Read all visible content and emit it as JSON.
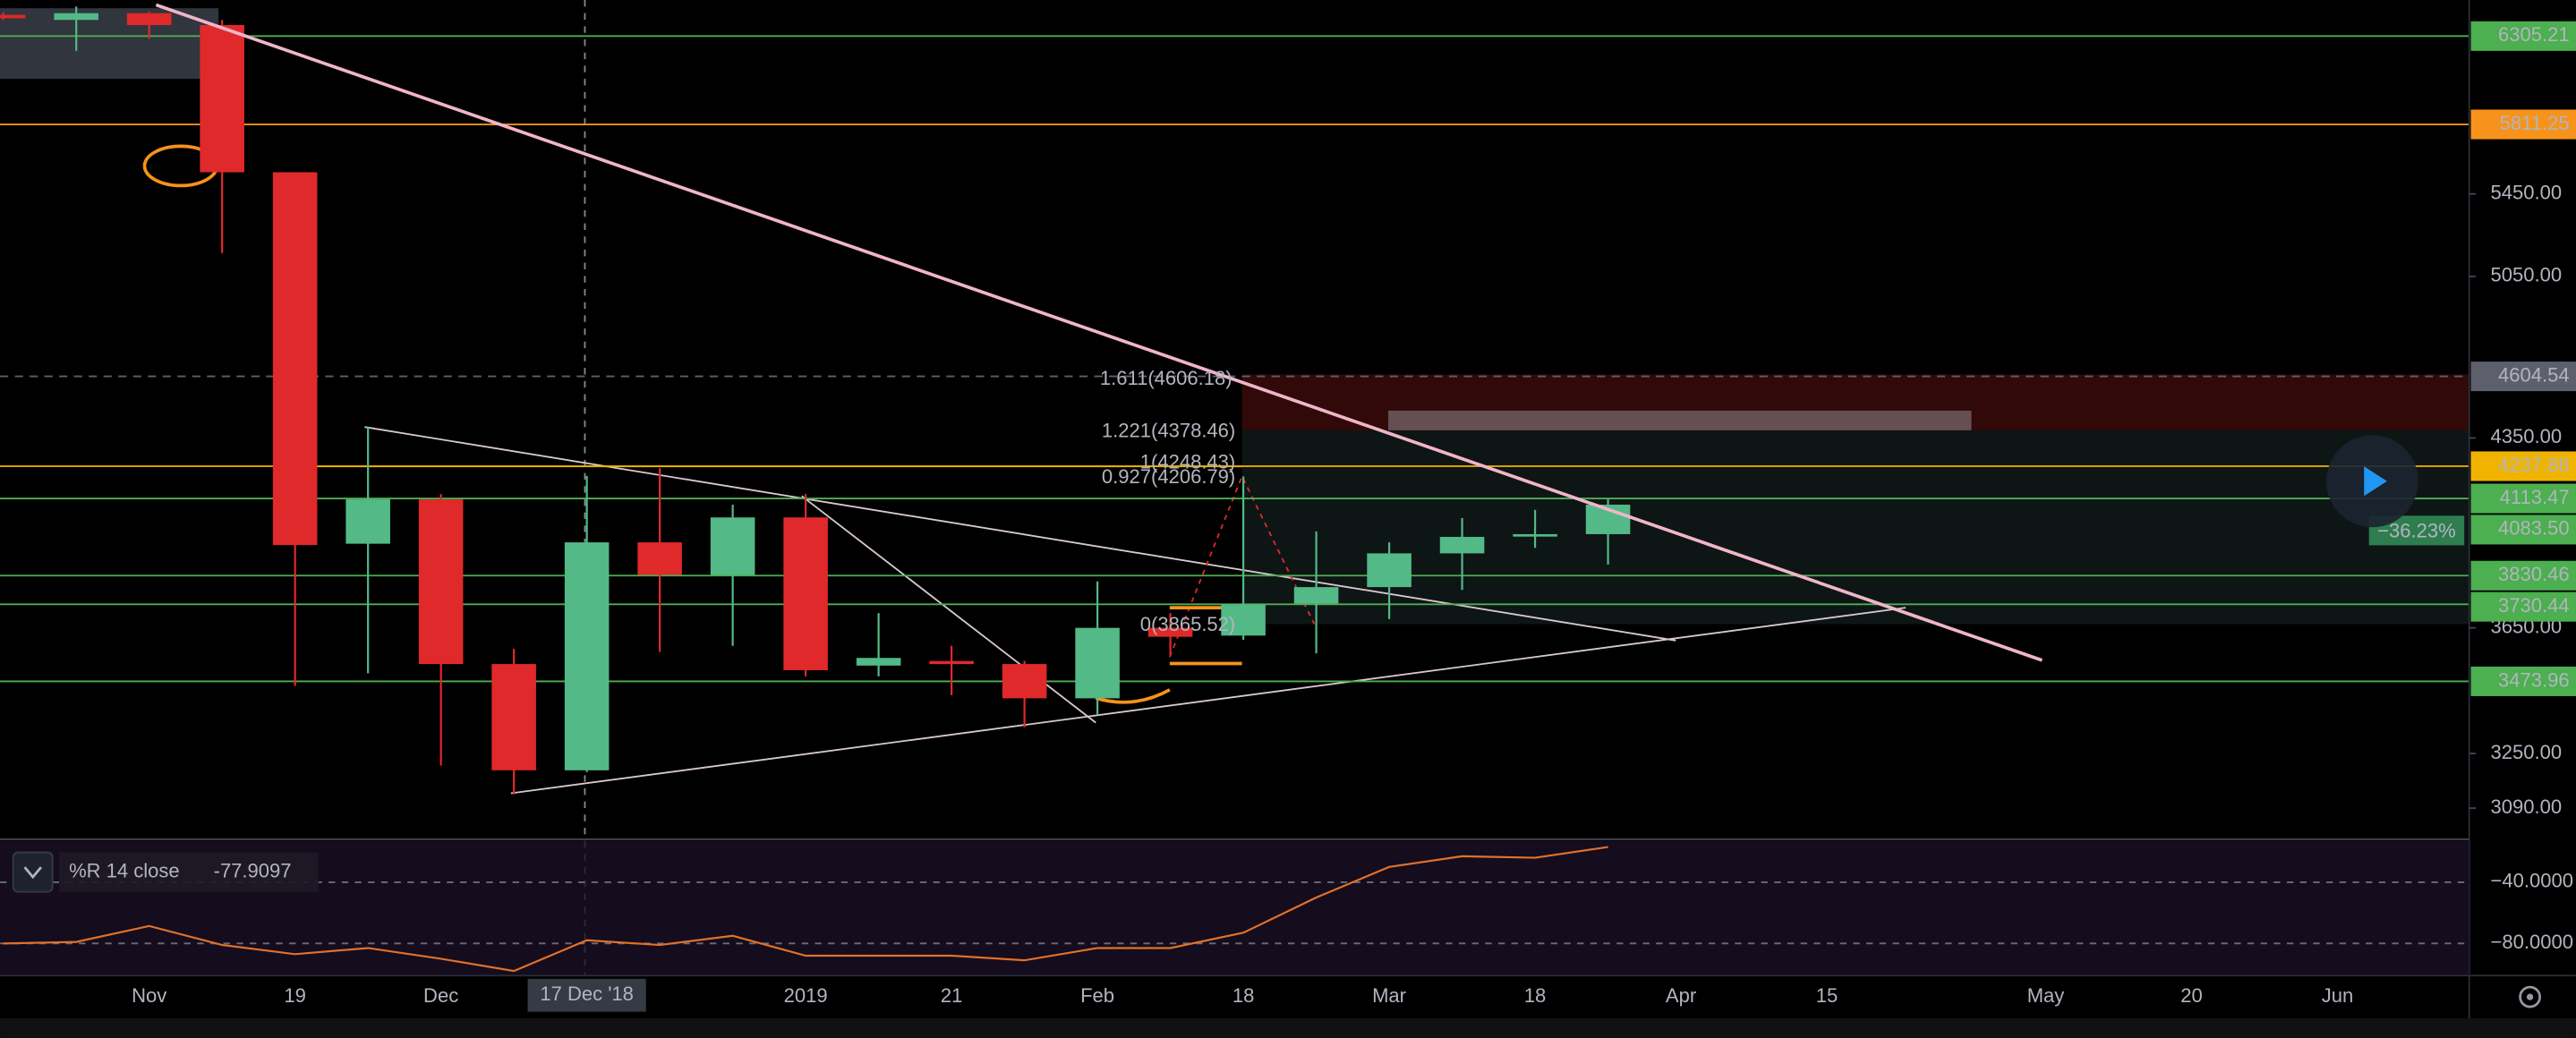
{
  "chart_data": [
    {
      "type": "candlestick",
      "log": true,
      "grid": false,
      "x": [
        null,
        null,
        "Nov",
        null,
        "19",
        null,
        "Dec",
        null,
        null,
        null,
        null,
        "2019",
        null,
        "21",
        null,
        "Feb",
        null,
        "18",
        null,
        "Mar",
        null,
        "18",
        null,
        "Apr",
        null,
        "15",
        null,
        null,
        "May",
        null,
        "20",
        null,
        "Jun",
        null
      ],
      "open": [
        6430,
        6400,
        6440,
        6370,
        5560,
        3945,
        4110,
        3530,
        3200,
        3950,
        3833,
        4042,
        3525,
        3540,
        3530,
        3420,
        3650,
        3624,
        3733,
        3790,
        3910,
        3975,
        3980,
        null,
        null,
        null,
        null,
        null,
        null,
        null,
        null,
        null,
        null,
        null
      ],
      "high": [
        6445,
        6480,
        6450,
        6400,
        5560,
        4394,
        4130,
        3580,
        4200,
        4230,
        4090,
        4130,
        3700,
        3590,
        3540,
        3810,
        3700,
        4198,
        3990,
        3950,
        4040,
        4070,
        4110,
        null,
        null,
        null,
        null,
        null,
        null,
        null,
        null,
        null,
        null,
        null
      ],
      "low": [
        6400,
        6220,
        6290,
        5160,
        3460,
        3500,
        3214,
        3130,
        3195,
        3570,
        3590,
        3490,
        3490,
        3430,
        3330,
        3370,
        3560,
        3610,
        3565,
        3680,
        3780,
        3930,
        3870,
        null,
        null,
        null,
        null,
        null,
        null,
        null,
        null,
        null,
        null,
        null
      ],
      "close": [
        6410,
        6440,
        6370,
        5560,
        3940,
        4110,
        3530,
        3200,
        3950,
        3833,
        4042,
        3510,
        3550,
        3530,
        3420,
        3650,
        3620,
        3730,
        3790,
        3910,
        3970,
        3980,
        4090,
        null,
        null,
        null,
        null,
        null,
        null,
        null,
        null,
        null,
        null,
        null
      ],
      "up_color": "#53b987",
      "down_color": "#e0292a",
      "ylim": [
        3007,
        6519
      ],
      "yticks": [
        {
          "value": 5450,
          "label": "5450.00"
        },
        {
          "value": 5050,
          "label": "5050.00"
        },
        {
          "value": 4350,
          "label": "4350.00"
        },
        {
          "value": 3650,
          "label": "3650.00"
        },
        {
          "value": 3250,
          "label": "3250.00"
        },
        {
          "value": 3090,
          "label": "3090.00"
        }
      ],
      "levels": [
        {
          "value": 6305.21,
          "color": "#4caf50"
        },
        {
          "value": 5811.25,
          "color": "#f7931a"
        },
        {
          "value": 4604.54,
          "color": "#5d606b",
          "dash": true
        },
        {
          "value": 4237.88,
          "color": "#f0b400"
        },
        {
          "value": 4113.47,
          "color": "#4caf50"
        },
        {
          "value": 4083.5,
          "label": "4083.50",
          "color": "#4caf50",
          "no_line": true
        },
        {
          "value": 3830.46,
          "color": "#4caf50"
        },
        {
          "value": 3730.44,
          "color": "#4caf50"
        },
        {
          "value": 3473.96,
          "color": "#4caf50"
        }
      ],
      "annotations": [
        "1.611(4606.18)",
        "1.221(4378.46)",
        "1(4248.43)",
        "0.927(4206.79)",
        "0(3865.52)",
        "−36.23%"
      ],
      "crosshair_label": "17 Dec '18"
    },
    {
      "type": "line",
      "title": "%R 14 close",
      "color": "#e0712a",
      "values": [
        -80,
        -79,
        -68.6,
        -81,
        -87,
        -83,
        -90,
        -98,
        -77.9097,
        -81,
        -75,
        -88,
        -88,
        -88,
        -91,
        -83,
        -83,
        -73,
        -50,
        -30,
        -23,
        -24,
        -17,
        null,
        null,
        null,
        null,
        null,
        null,
        null,
        null,
        null,
        null,
        null
      ],
      "ylim": [
        -101,
        -13
      ],
      "yticks": [
        {
          "value": -40,
          "label": "−40.0000"
        },
        {
          "value": -80,
          "label": "−80.0000"
        }
      ]
    }
  ]
}
